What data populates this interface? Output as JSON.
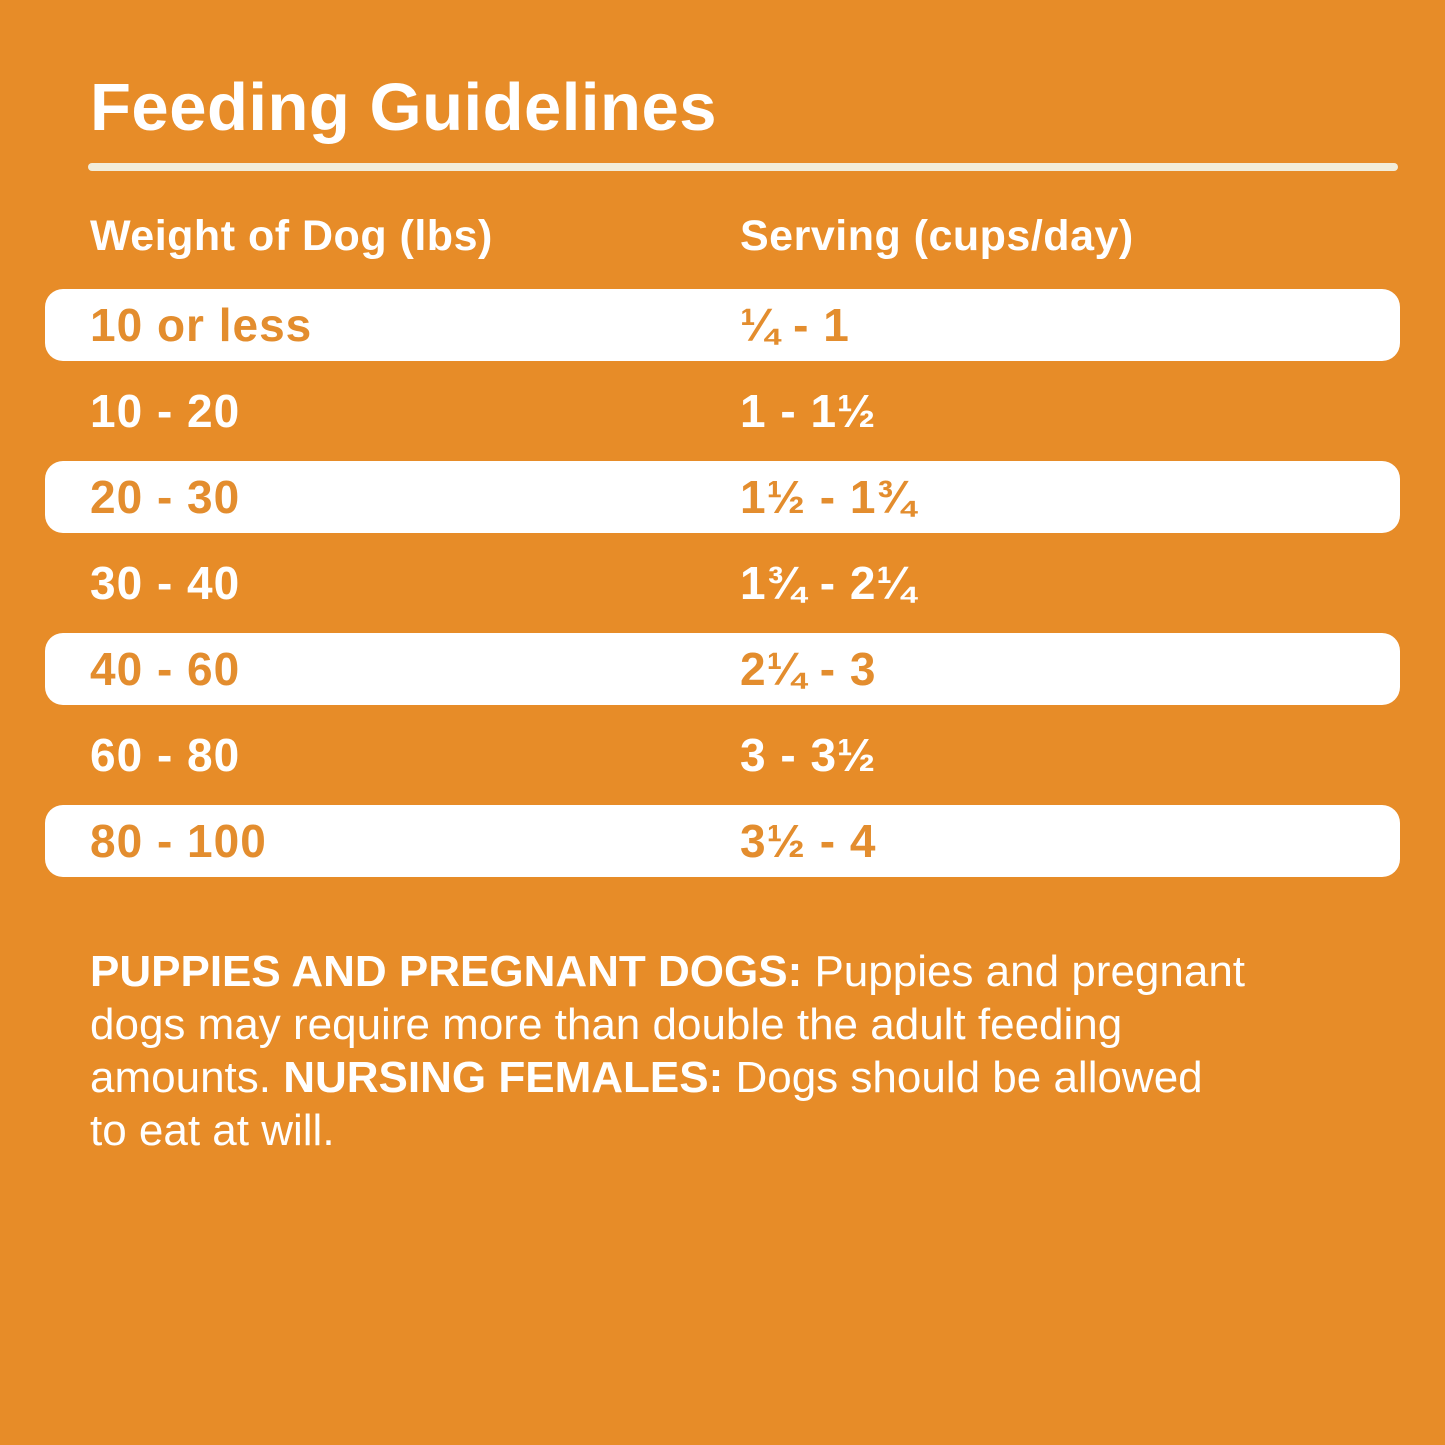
{
  "title": "Feeding Guidelines",
  "table": {
    "headers": [
      "Weight of Dog (lbs)",
      "Serving (cups/day)"
    ],
    "rows": [
      {
        "weight": "10 or less",
        "serving": "¼ - 1"
      },
      {
        "weight": "10 - 20",
        "serving": "1 - 1½"
      },
      {
        "weight": "20 - 30",
        "serving": "1½ - 1¾"
      },
      {
        "weight": "30 - 40",
        "serving": "1¾ - 2¼"
      },
      {
        "weight": "40 - 60",
        "serving": "2¼ - 3"
      },
      {
        "weight": "60 - 80",
        "serving": "3 - 3½"
      },
      {
        "weight": "80 - 100",
        "serving": "3½ - 4"
      }
    ]
  },
  "footnote": {
    "lines": [
      {
        "runs": [
          {
            "t": "PUPPIES AND PREGNANT DOGS: ",
            "b": true
          },
          {
            "t": "Puppies and pregnant",
            "b": false
          }
        ]
      },
      {
        "runs": [
          {
            "t": "dogs may require more than double the adult feeding",
            "b": false
          }
        ]
      },
      {
        "runs": [
          {
            "t": "amounts. ",
            "b": false
          },
          {
            "t": "NURSING FEMALES: ",
            "b": true
          },
          {
            "t": "Dogs should be allowed",
            "b": false
          }
        ]
      },
      {
        "runs": [
          {
            "t": "to eat at will.",
            "b": false
          }
        ]
      }
    ]
  },
  "colors": {
    "bg": "#E78C28",
    "row-white": "#FFFFFF",
    "orange-text": "#E38D2E",
    "cream-line": "#F2EDDA",
    "white-text": "#FFFFFF"
  }
}
